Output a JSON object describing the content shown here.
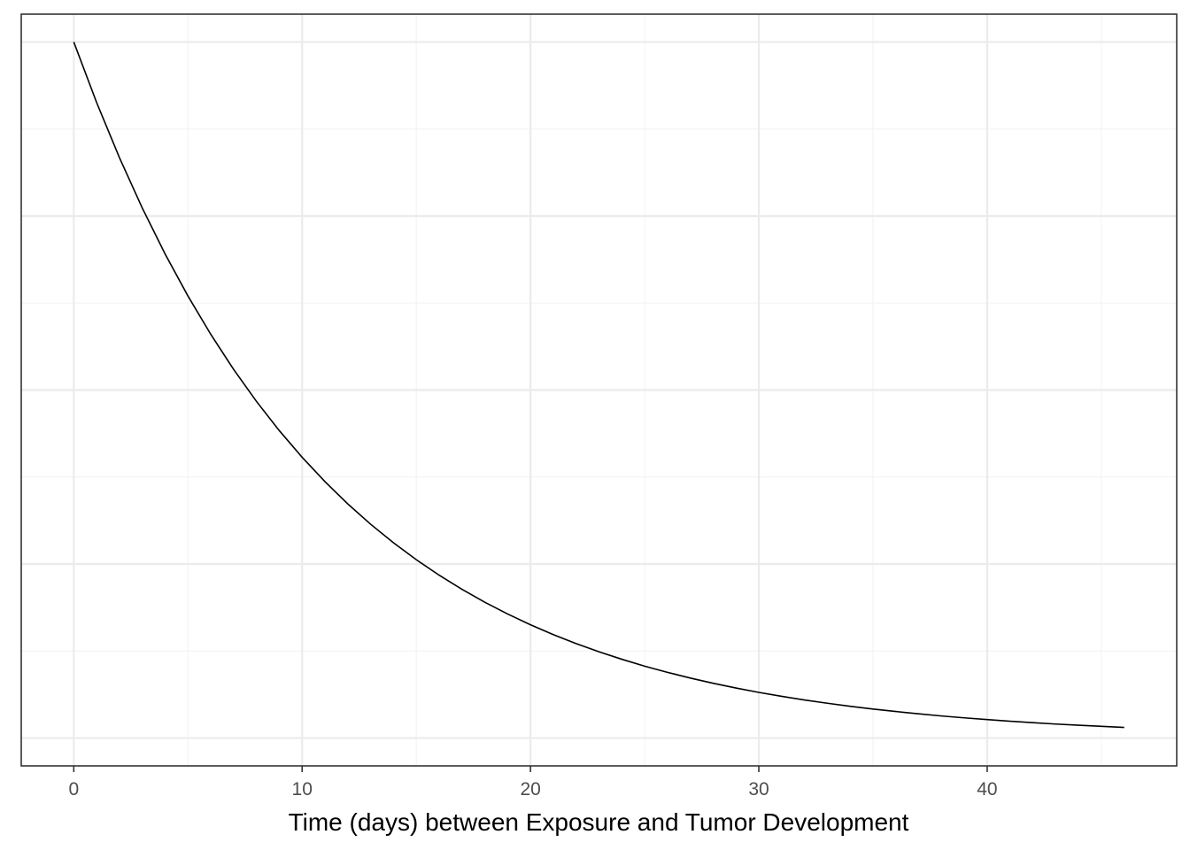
{
  "chart_data": {
    "type": "line",
    "title": "",
    "xlabel": "Time (days) between Exposure and Tumor Development",
    "ylabel": "",
    "xlim": [
      -2.3,
      48.3
    ],
    "ylim": [
      -0.04,
      1.04
    ],
    "x_ticks": [
      0,
      10,
      20,
      30,
      40
    ],
    "x_tick_labels": [
      "0",
      "10",
      "20",
      "30",
      "40"
    ],
    "x_minor_ticks": [
      5,
      15,
      25,
      35,
      45
    ],
    "y_major_grid": [
      0,
      0.25,
      0.5,
      0.75,
      1.0
    ],
    "y_minor_grid": [
      0.125,
      0.375,
      0.625,
      0.875
    ],
    "y_tick_labels_shown": false,
    "grid": true,
    "legend": "none",
    "colors": {
      "line": "#000000",
      "panel_border": "#333333",
      "grid_major": "#ebebeb",
      "grid_minor": "#f2f2f2",
      "tick_label": "#4d4d4d"
    },
    "series": [
      {
        "x": [
          0,
          1,
          2,
          3,
          4,
          5,
          6,
          7,
          8,
          9,
          10,
          11,
          12,
          13,
          14,
          15,
          16,
          17,
          18,
          19,
          20,
          21,
          22,
          23,
          24,
          25,
          26,
          27,
          28,
          29,
          30,
          31,
          32,
          33,
          34,
          35,
          36,
          37,
          38,
          39,
          40,
          41,
          42,
          43,
          44,
          45,
          46
        ],
        "y": [
          1.0,
          0.9131,
          0.8339,
          0.7615,
          0.6954,
          0.6351,
          0.58,
          0.5296,
          0.4837,
          0.4417,
          0.4034,
          0.3684,
          0.3364,
          0.3072,
          0.2806,
          0.2562,
          0.234,
          0.2137,
          0.1951,
          0.1782,
          0.1627,
          0.1486,
          0.1357,
          0.1239,
          0.1132,
          0.1033,
          0.0944,
          0.0862,
          0.0787,
          0.0719,
          0.0656,
          0.0599,
          0.0547,
          0.05,
          0.0456,
          0.0417,
          0.0381,
          0.0348,
          0.0317,
          0.029,
          0.0265,
          0.0242,
          0.0221,
          0.0201,
          0.0184,
          0.0168,
          0.0153
        ]
      }
    ]
  }
}
